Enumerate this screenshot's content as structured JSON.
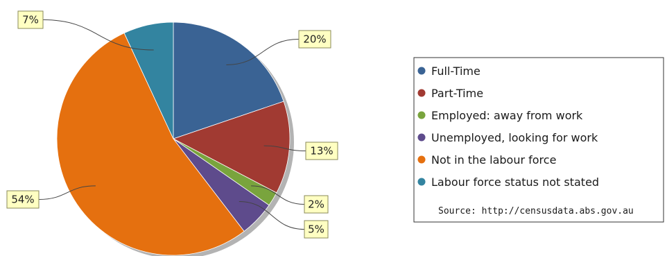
{
  "chart_data": {
    "type": "pie",
    "slices": [
      {
        "name": "Full-Time",
        "value": 20,
        "label": "20%",
        "color": "#3a6394"
      },
      {
        "name": "Part-Time",
        "value": 13,
        "label": "13%",
        "color": "#a13a32"
      },
      {
        "name": "Employed: away from work",
        "value": 2,
        "label": "2%",
        "color": "#79a43d"
      },
      {
        "name": "Unemployed, looking for work",
        "value": 5,
        "label": "5%",
        "color": "#5e4b8c"
      },
      {
        "name": "Not in the labour force",
        "value": 54,
        "label": "54%",
        "color": "#e5700f"
      },
      {
        "name": "Labour force status not stated",
        "value": 7,
        "label": "7%",
        "color": "#3384a0"
      }
    ],
    "start_angle": "12 o'clock",
    "direction": "clockwise",
    "legend_position": "right",
    "source": "Source: http://censusdata.abs.gov.au"
  },
  "colors": {
    "label_fill": "#ffffc2",
    "label_border": "#8a8a5a",
    "leader_line": "#444444",
    "legend_border": "#333333",
    "shadow": "#b3b3b3"
  }
}
